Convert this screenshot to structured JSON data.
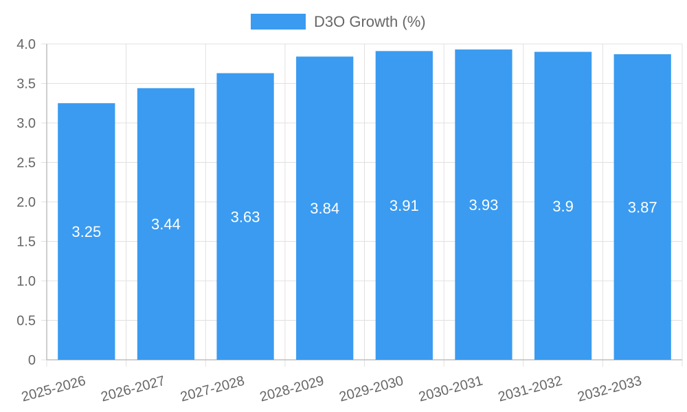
{
  "chart_data": {
    "type": "bar",
    "categories": [
      "2025-2026",
      "2026-2027",
      "2027-2028",
      "2028-2029",
      "2029-2030",
      "2030-2031",
      "2031-2032",
      "2032-2033"
    ],
    "series": [
      {
        "name": "D3O Growth (%)",
        "values": [
          3.25,
          3.44,
          3.63,
          3.84,
          3.91,
          3.93,
          3.9,
          3.87
        ]
      }
    ],
    "data_labels": [
      "3.25",
      "3.44",
      "3.63",
      "3.84",
      "3.91",
      "3.93",
      "3.9",
      "3.87"
    ],
    "y_tick_labels": [
      "0",
      "0.5",
      "1.0",
      "1.5",
      "2.0",
      "2.5",
      "3.0",
      "3.5",
      "4.0"
    ],
    "ylim": [
      0,
      4
    ],
    "y_tick_step": 0.5,
    "grid": true,
    "legend_position": "top-center",
    "colors": {
      "bar": "#3a9bf0",
      "grid": "#e0e0e0",
      "axis": "#bdbdbd",
      "text": "#666666"
    }
  }
}
